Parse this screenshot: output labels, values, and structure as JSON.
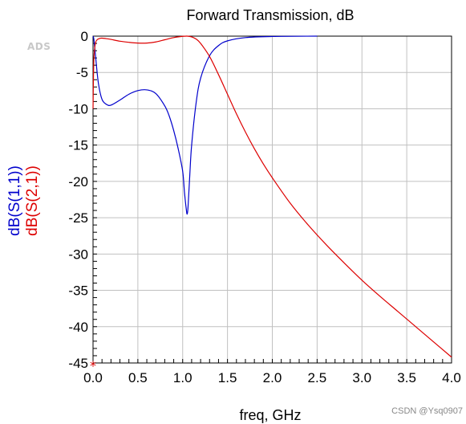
{
  "chart_data": {
    "type": "line",
    "title": "Forward Transmission, dB",
    "xlabel": "freq, GHz",
    "xlim": [
      0.0,
      4.0
    ],
    "ylim": [
      -45,
      0
    ],
    "x_ticks": [
      0.0,
      0.5,
      1.0,
      1.5,
      2.0,
      2.5,
      3.0,
      3.5,
      4.0
    ],
    "x_tick_labels": [
      "0.0",
      "0.5",
      "1.0",
      "1.5",
      "2.0",
      "2.5",
      "3.0",
      "3.5",
      "4.0"
    ],
    "y_ticks": [
      0,
      -5,
      -10,
      -15,
      -20,
      -25,
      -30,
      -35,
      -40,
      -45
    ],
    "y_tick_labels": [
      "0",
      "-5",
      "-10",
      "-15",
      "-20",
      "-25",
      "-30",
      "-35",
      "-40",
      "-45"
    ],
    "grid": true,
    "series": [
      {
        "name": "dB(S(1,1))",
        "color": "#0000cc",
        "x": [
          0.0,
          0.01,
          0.03,
          0.06,
          0.1,
          0.15,
          0.2,
          0.3,
          0.4,
          0.5,
          0.6,
          0.7,
          0.8,
          0.85,
          0.9,
          0.95,
          1.0,
          1.02,
          1.04,
          1.05,
          1.06,
          1.08,
          1.1,
          1.15,
          1.2,
          1.3,
          1.4,
          1.5,
          1.7,
          2.0,
          2.5
        ],
        "y": [
          0,
          -0.5,
          -3,
          -6.5,
          -8.7,
          -9.4,
          -9.5,
          -8.8,
          -8.0,
          -7.5,
          -7.4,
          -7.9,
          -9.6,
          -11.0,
          -13.0,
          -15.5,
          -18.6,
          -21.5,
          -23.8,
          -24.5,
          -23.5,
          -19.0,
          -15.0,
          -9.2,
          -5.8,
          -2.7,
          -1.3,
          -0.65,
          -0.2,
          -0.05,
          0
        ]
      },
      {
        "name": "dB(S(2,1))",
        "color": "#dd0000",
        "x": [
          0.0,
          0.005,
          0.01,
          0.02,
          0.03,
          0.05,
          0.08,
          0.1,
          0.15,
          0.2,
          0.3,
          0.4,
          0.5,
          0.6,
          0.7,
          0.8,
          0.9,
          1.0,
          1.05,
          1.1,
          1.15,
          1.2,
          1.3,
          1.4,
          1.5,
          1.6,
          1.7,
          1.8,
          1.9,
          2.0,
          2.2,
          2.4,
          2.6,
          2.8,
          3.0,
          3.2,
          3.4,
          3.6,
          3.8,
          4.0
        ],
        "y": [
          -10,
          -5.5,
          -3.0,
          -1.5,
          -0.8,
          -0.45,
          -0.3,
          -0.28,
          -0.35,
          -0.45,
          -0.7,
          -0.85,
          -0.95,
          -0.95,
          -0.8,
          -0.5,
          -0.2,
          -0.03,
          0,
          -0.1,
          -0.4,
          -1.0,
          -2.8,
          -5.3,
          -8.0,
          -10.7,
          -13.2,
          -15.5,
          -17.6,
          -19.5,
          -23.0,
          -26.0,
          -28.7,
          -31.2,
          -33.6,
          -35.8,
          -37.9,
          -40.0,
          -42.1,
          -44.2
        ]
      }
    ],
    "marker_label": "*"
  },
  "logo": "ADS",
  "watermark": "CSDN @Ysq0907"
}
